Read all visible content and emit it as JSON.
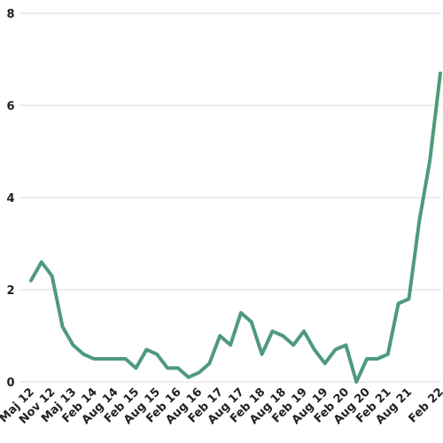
{
  "chart_data": {
    "type": "line",
    "categories": [
      "Maj 12",
      null,
      "Nov 12",
      null,
      "Maj 13",
      null,
      "Feb 14",
      null,
      "Aug 14",
      null,
      "Feb 15",
      null,
      "Aug 15",
      null,
      "Feb 16",
      null,
      "Aug 16",
      null,
      "Feb 17",
      null,
      "Aug 17",
      null,
      "Feb 18",
      null,
      "Aug 18",
      null,
      "Feb 19",
      null,
      "Aug 19",
      null,
      "Feb 20",
      null,
      "Aug 20",
      null,
      "Feb 21",
      null,
      "Aug 21",
      null,
      null,
      "Feb 22"
    ],
    "series": [
      {
        "color": "#4e9a7c",
        "values": [
          2.2,
          2.6,
          2.3,
          1.2,
          0.8,
          0.6,
          0.5,
          0.5,
          0.5,
          0.5,
          0.3,
          0.7,
          0.6,
          0.3,
          0.3,
          0.1,
          0.2,
          0.4,
          1.0,
          0.8,
          1.5,
          1.3,
          0.6,
          1.1,
          1.0,
          0.8,
          1.1,
          0.7,
          0.4,
          0.7,
          0.8,
          0.0,
          0.5,
          0.5,
          0.6,
          1.7,
          1.8,
          3.5,
          4.8,
          6.7
        ]
      }
    ],
    "ylim": [
      0,
      8
    ],
    "yticks": [
      0,
      2,
      4,
      6,
      8
    ],
    "grid": true
  }
}
